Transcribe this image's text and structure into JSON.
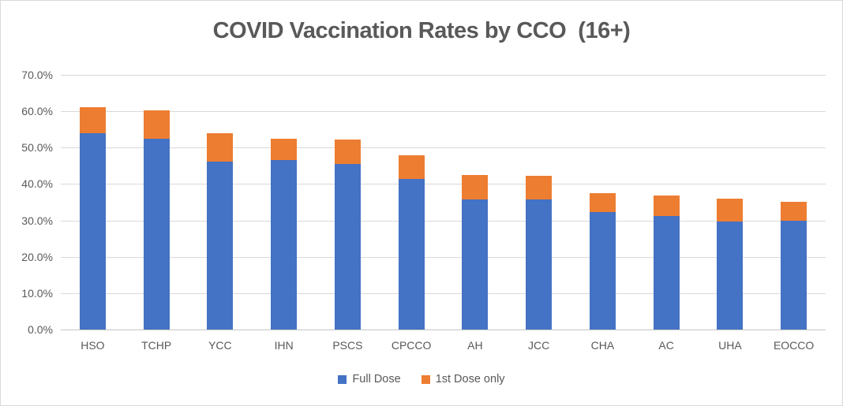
{
  "title": "COVID Vaccination Rates by CCO  (16+)",
  "colors": {
    "full_dose": "#4472C4",
    "first_dose_only": "#ED7D31",
    "title_text": "#595959",
    "axis_text": "#595959",
    "gridline": "#D9D9D9",
    "axis_line": "#C6C6C6",
    "frame_border": "#D9D9D9",
    "background": "#FFFFFF"
  },
  "chart_data": {
    "type": "bar",
    "stacked": true,
    "title": "COVID Vaccination Rates by CCO  (16+)",
    "xlabel": "",
    "ylabel": "",
    "categories": [
      "HSO",
      "TCHP",
      "YCC",
      "IHN",
      "PSCS",
      "CPCCO",
      "AH",
      "JCC",
      "CHA",
      "AC",
      "UHA",
      "EOCCO"
    ],
    "series": [
      {
        "name": "Full Dose",
        "color": "#4472C4",
        "values": [
          54.0,
          52.5,
          46.2,
          46.5,
          45.5,
          41.5,
          35.8,
          35.7,
          32.2,
          31.2,
          29.7,
          30.0
        ]
      },
      {
        "name": "1st Dose only",
        "color": "#ED7D31",
        "values": [
          7.2,
          7.7,
          7.8,
          6.0,
          6.7,
          6.3,
          6.7,
          6.6,
          5.2,
          5.7,
          6.2,
          5.2
        ]
      }
    ],
    "stacked_totals": [
      61.2,
      60.2,
      54.0,
      52.5,
      52.2,
      47.8,
      42.5,
      42.3,
      37.4,
      36.9,
      35.9,
      35.2
    ],
    "ylim": [
      0,
      70
    ],
    "ytick_step": 10,
    "ytick_labels": [
      "70.0%",
      "60.0%",
      "50.0%",
      "40.0%",
      "30.0%",
      "20.0%",
      "10.0%",
      "0.0%"
    ],
    "grid": true,
    "legend_position": "bottom"
  },
  "legend": {
    "items": [
      {
        "label": "Full Dose",
        "color": "#4472C4"
      },
      {
        "label": "1st Dose only",
        "color": "#ED7D31"
      }
    ]
  }
}
